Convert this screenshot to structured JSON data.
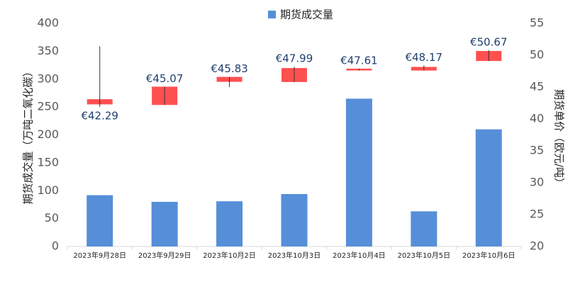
{
  "chart_data": {
    "type": "bar_candlestick",
    "legend": "期货成交量",
    "y_label": "期货成交量（万吨二氧化碳）",
    "y2_label": "期货单价（欧元/吨）",
    "categories": [
      "2023年9月28日",
      "2023年9月29日",
      "2023年10月2日",
      "2023年10月3日",
      "2023年10月4日",
      "2023年10月5日",
      "2023年10月6日"
    ],
    "ylim": [
      0,
      400
    ],
    "yticks": [
      0,
      50,
      100,
      150,
      200,
      250,
      300,
      350,
      400
    ],
    "y2lim": [
      20,
      55
    ],
    "y2ticks": [
      20,
      25,
      30,
      35,
      40,
      45,
      50,
      55
    ],
    "series": [
      {
        "name": "期货成交量",
        "type": "bar",
        "color": "#568fd8",
        "values": [
          92,
          80,
          81,
          94,
          265,
          63,
          210
        ]
      },
      {
        "type": "candlestick",
        "axis": "y2",
        "color": "#ff5050",
        "wick_color": "#333333",
        "label_color": "#1f3f6e",
        "values": [
          42.29,
          45.07,
          45.83,
          47.99,
          47.61,
          48.17,
          50.67
        ],
        "value_labels": [
          "€42.29",
          "€45.07",
          "€45.83",
          "€47.99",
          "€47.61",
          "€48.17",
          "€50.67"
        ],
        "open": [
          43.1,
          42.2,
          46.6,
          45.8,
          47.9,
          47.6,
          49.1
        ],
        "high": [
          51.4,
          45.07,
          46.6,
          48.2,
          47.9,
          48.4,
          50.8
        ],
        "low": [
          41.9,
          42.2,
          45.0,
          45.8,
          47.61,
          47.6,
          49.1
        ]
      }
    ]
  }
}
